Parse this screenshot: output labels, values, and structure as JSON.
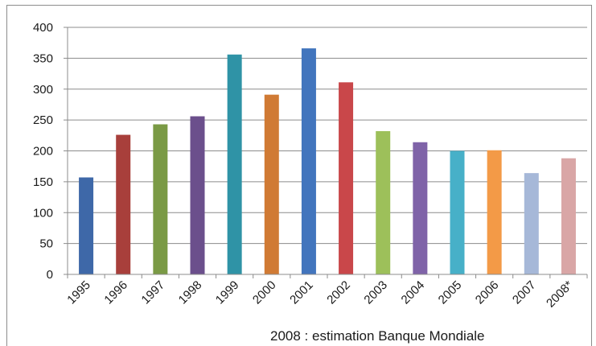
{
  "chart_data": {
    "type": "bar",
    "categories": [
      "1995",
      "1996",
      "1997",
      "1998",
      "1999",
      "2000",
      "2001",
      "2002",
      "2003",
      "2004",
      "2005",
      "2006",
      "2007",
      "2008*"
    ],
    "values": [
      157,
      226,
      243,
      256,
      356,
      291,
      366,
      311,
      232,
      214,
      200,
      201,
      164,
      188
    ],
    "colors": [
      "#3e68a8",
      "#a83f3b",
      "#7a9a45",
      "#6b4f8c",
      "#2f93a6",
      "#d07a34",
      "#4275bd",
      "#c9474a",
      "#9dc05a",
      "#7f63a8",
      "#47b0c8",
      "#f39a47",
      "#a6b8d8",
      "#d9a6a6"
    ],
    "yticks": [
      0,
      50,
      100,
      150,
      200,
      250,
      300,
      350,
      400
    ],
    "ylim": [
      0,
      400
    ],
    "grid": true,
    "title": "",
    "xlabel": "",
    "ylabel": ""
  },
  "note": "2008 : estimation Banque Mondiale"
}
